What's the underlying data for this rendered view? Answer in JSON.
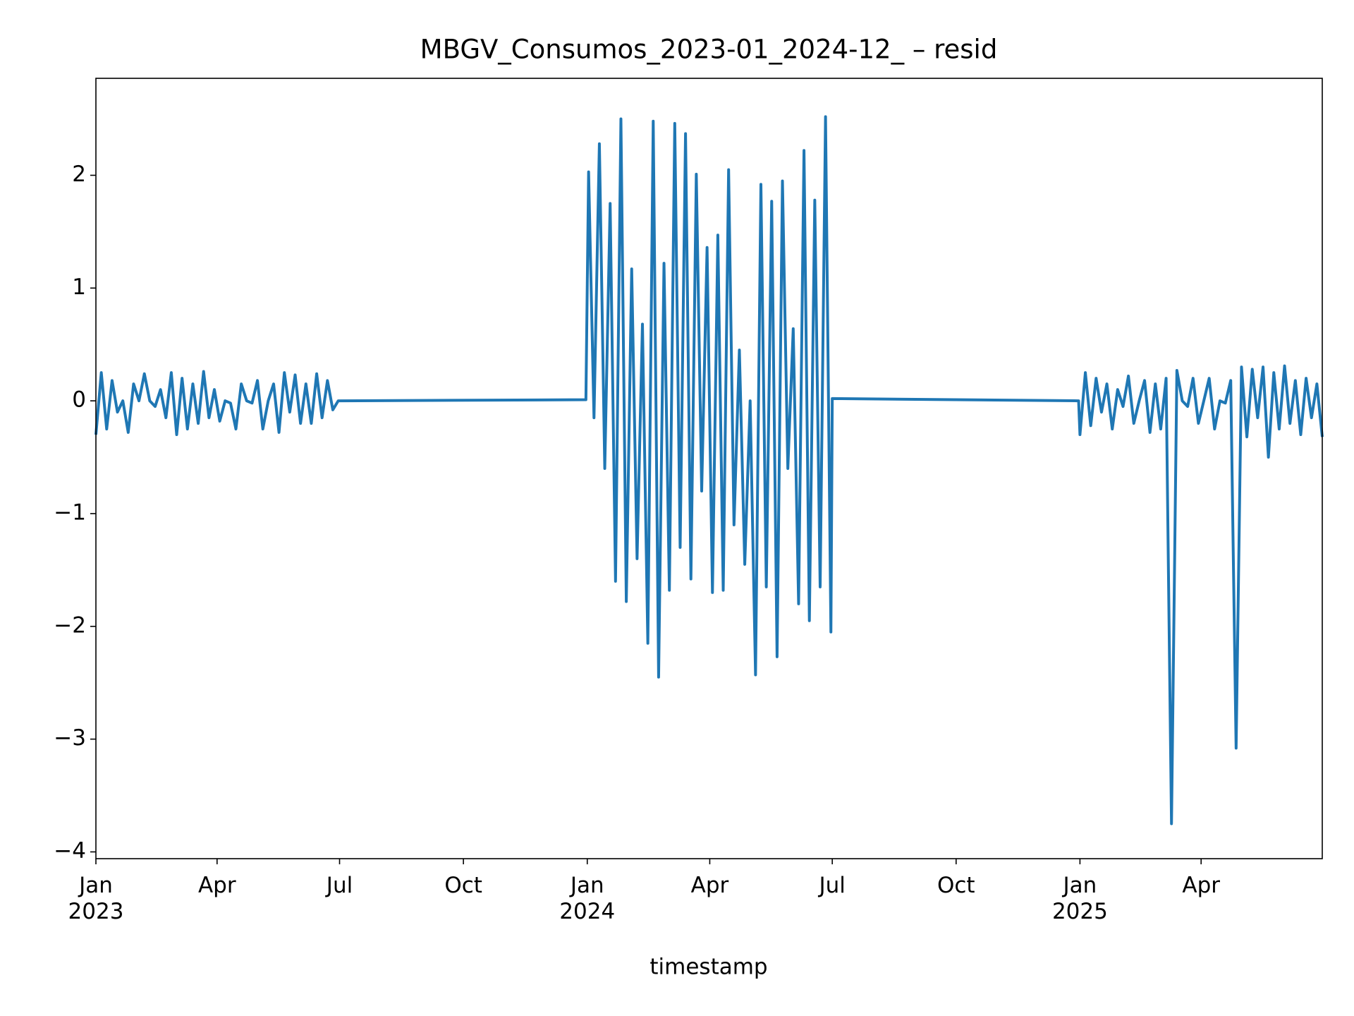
{
  "chart_data": {
    "type": "line",
    "title": "MBGV_Consumos_2023-01_2024-12_ – resid",
    "x_label": "timestamp",
    "color": "#1f77b4",
    "xlim": [
      "2023-01-01",
      "2025-06-30"
    ],
    "ylim": [
      -4.06,
      2.86
    ],
    "yticks": [
      {
        "value": -4,
        "label": "−4"
      },
      {
        "value": -3,
        "label": "−3"
      },
      {
        "value": -2,
        "label": "−2"
      },
      {
        "value": -1,
        "label": "−1"
      },
      0,
      1,
      2
    ],
    "xticks": [
      {
        "value": "2023-01-01",
        "label": "Jan",
        "year": "2023"
      },
      {
        "value": "2023-04-01",
        "label": "Apr"
      },
      {
        "value": "2023-07-01",
        "label": "Jul"
      },
      {
        "value": "2023-10-01",
        "label": "Oct"
      },
      {
        "value": "2024-01-01",
        "label": "Jan",
        "year": "2024"
      },
      {
        "value": "2024-04-01",
        "label": "Apr"
      },
      {
        "value": "2024-07-01",
        "label": "Jul"
      },
      {
        "value": "2024-10-01",
        "label": "Oct"
      },
      {
        "value": "2025-01-01",
        "label": "Jan",
        "year": "2025"
      },
      {
        "value": "2025-04-01",
        "label": "Apr"
      }
    ],
    "x": [
      "2023-01-01",
      "2023-01-05",
      "2023-01-09",
      "2023-01-13",
      "2023-01-17",
      "2023-01-21",
      "2023-01-25",
      "2023-01-29",
      "2023-02-02",
      "2023-02-06",
      "2023-02-10",
      "2023-02-14",
      "2023-02-18",
      "2023-02-22",
      "2023-02-26",
      "2023-03-02",
      "2023-03-06",
      "2023-03-10",
      "2023-03-14",
      "2023-03-18",
      "2023-03-22",
      "2023-03-26",
      "2023-03-30",
      "2023-04-03",
      "2023-04-07",
      "2023-04-11",
      "2023-04-15",
      "2023-04-19",
      "2023-04-23",
      "2023-04-27",
      "2023-05-01",
      "2023-05-05",
      "2023-05-09",
      "2023-05-13",
      "2023-05-17",
      "2023-05-21",
      "2023-05-25",
      "2023-05-29",
      "2023-06-02",
      "2023-06-06",
      "2023-06-10",
      "2023-06-14",
      "2023-06-18",
      "2023-06-22",
      "2023-06-26",
      "2023-06-30",
      "2023-12-31",
      "2024-01-02",
      "2024-01-06",
      "2024-01-10",
      "2024-01-14",
      "2024-01-18",
      "2024-01-22",
      "2024-01-26",
      "2024-01-30",
      "2024-02-03",
      "2024-02-07",
      "2024-02-11",
      "2024-02-15",
      "2024-02-19",
      "2024-02-23",
      "2024-02-27",
      "2024-03-02",
      "2024-03-06",
      "2024-03-10",
      "2024-03-14",
      "2024-03-18",
      "2024-03-22",
      "2024-03-26",
      "2024-03-30",
      "2024-04-03",
      "2024-04-07",
      "2024-04-11",
      "2024-04-15",
      "2024-04-19",
      "2024-04-23",
      "2024-04-27",
      "2024-05-01",
      "2024-05-05",
      "2024-05-09",
      "2024-05-13",
      "2024-05-17",
      "2024-05-21",
      "2024-05-25",
      "2024-05-29",
      "2024-06-02",
      "2024-06-06",
      "2024-06-10",
      "2024-06-14",
      "2024-06-18",
      "2024-06-22",
      "2024-06-26",
      "2024-06-30",
      "2024-07-01",
      "2024-12-31",
      "2025-01-01",
      "2025-01-05",
      "2025-01-09",
      "2025-01-13",
      "2025-01-17",
      "2025-01-21",
      "2025-01-25",
      "2025-01-29",
      "2025-02-02",
      "2025-02-06",
      "2025-02-10",
      "2025-02-14",
      "2025-02-18",
      "2025-02-22",
      "2025-02-26",
      "2025-03-02",
      "2025-03-06",
      "2025-03-10",
      "2025-03-14",
      "2025-03-18",
      "2025-03-22",
      "2025-03-26",
      "2025-03-30",
      "2025-04-03",
      "2025-04-07",
      "2025-04-11",
      "2025-04-15",
      "2025-04-19",
      "2025-04-23",
      "2025-04-27",
      "2025-05-01",
      "2025-05-05",
      "2025-05-09",
      "2025-05-13",
      "2025-05-17",
      "2025-05-21",
      "2025-05-25",
      "2025-05-29",
      "2025-06-02",
      "2025-06-06",
      "2025-06-10",
      "2025-06-14",
      "2025-06-18",
      "2025-06-22",
      "2025-06-26",
      "2025-06-30"
    ],
    "values": [
      -0.3,
      0.25,
      -0.25,
      0.18,
      -0.1,
      0.0,
      -0.28,
      0.15,
      0.0,
      0.24,
      0.0,
      -0.05,
      0.1,
      -0.15,
      0.25,
      -0.3,
      0.2,
      -0.25,
      0.15,
      -0.2,
      0.26,
      -0.15,
      0.1,
      -0.18,
      0.0,
      -0.02,
      -0.25,
      0.15,
      0.0,
      -0.02,
      0.18,
      -0.25,
      0.0,
      0.15,
      -0.28,
      0.25,
      -0.1,
      0.23,
      -0.2,
      0.15,
      -0.2,
      0.24,
      -0.15,
      0.18,
      -0.08,
      0.0,
      0.01,
      2.03,
      -0.15,
      2.28,
      -0.6,
      1.75,
      -1.6,
      2.5,
      -1.78,
      1.17,
      -1.4,
      0.68,
      -2.15,
      2.48,
      -2.45,
      1.22,
      -1.68,
      2.46,
      -1.3,
      2.37,
      -1.58,
      2.01,
      -0.8,
      1.36,
      -1.7,
      1.47,
      -1.68,
      2.05,
      -1.1,
      0.45,
      -1.45,
      0.0,
      -2.43,
      1.92,
      -1.65,
      1.77,
      -2.27,
      1.95,
      -0.6,
      0.64,
      -1.8,
      2.22,
      -1.95,
      1.78,
      -1.65,
      2.52,
      -2.05,
      0.02,
      0.0,
      -0.3,
      0.25,
      -0.22,
      0.2,
      -0.1,
      0.15,
      -0.25,
      0.1,
      -0.05,
      0.22,
      -0.2,
      0.0,
      0.18,
      -0.28,
      0.15,
      -0.25,
      0.2,
      -3.75,
      0.27,
      0.0,
      -0.05,
      0.2,
      -0.2,
      0.0,
      0.2,
      -0.25,
      0.0,
      -0.02,
      0.18,
      -3.08,
      0.3,
      -0.32,
      0.28,
      -0.15,
      0.3,
      -0.5,
      0.25,
      -0.25,
      0.31,
      -0.2,
      0.18,
      -0.3,
      0.2,
      -0.15,
      0.15,
      -0.32
    ]
  }
}
